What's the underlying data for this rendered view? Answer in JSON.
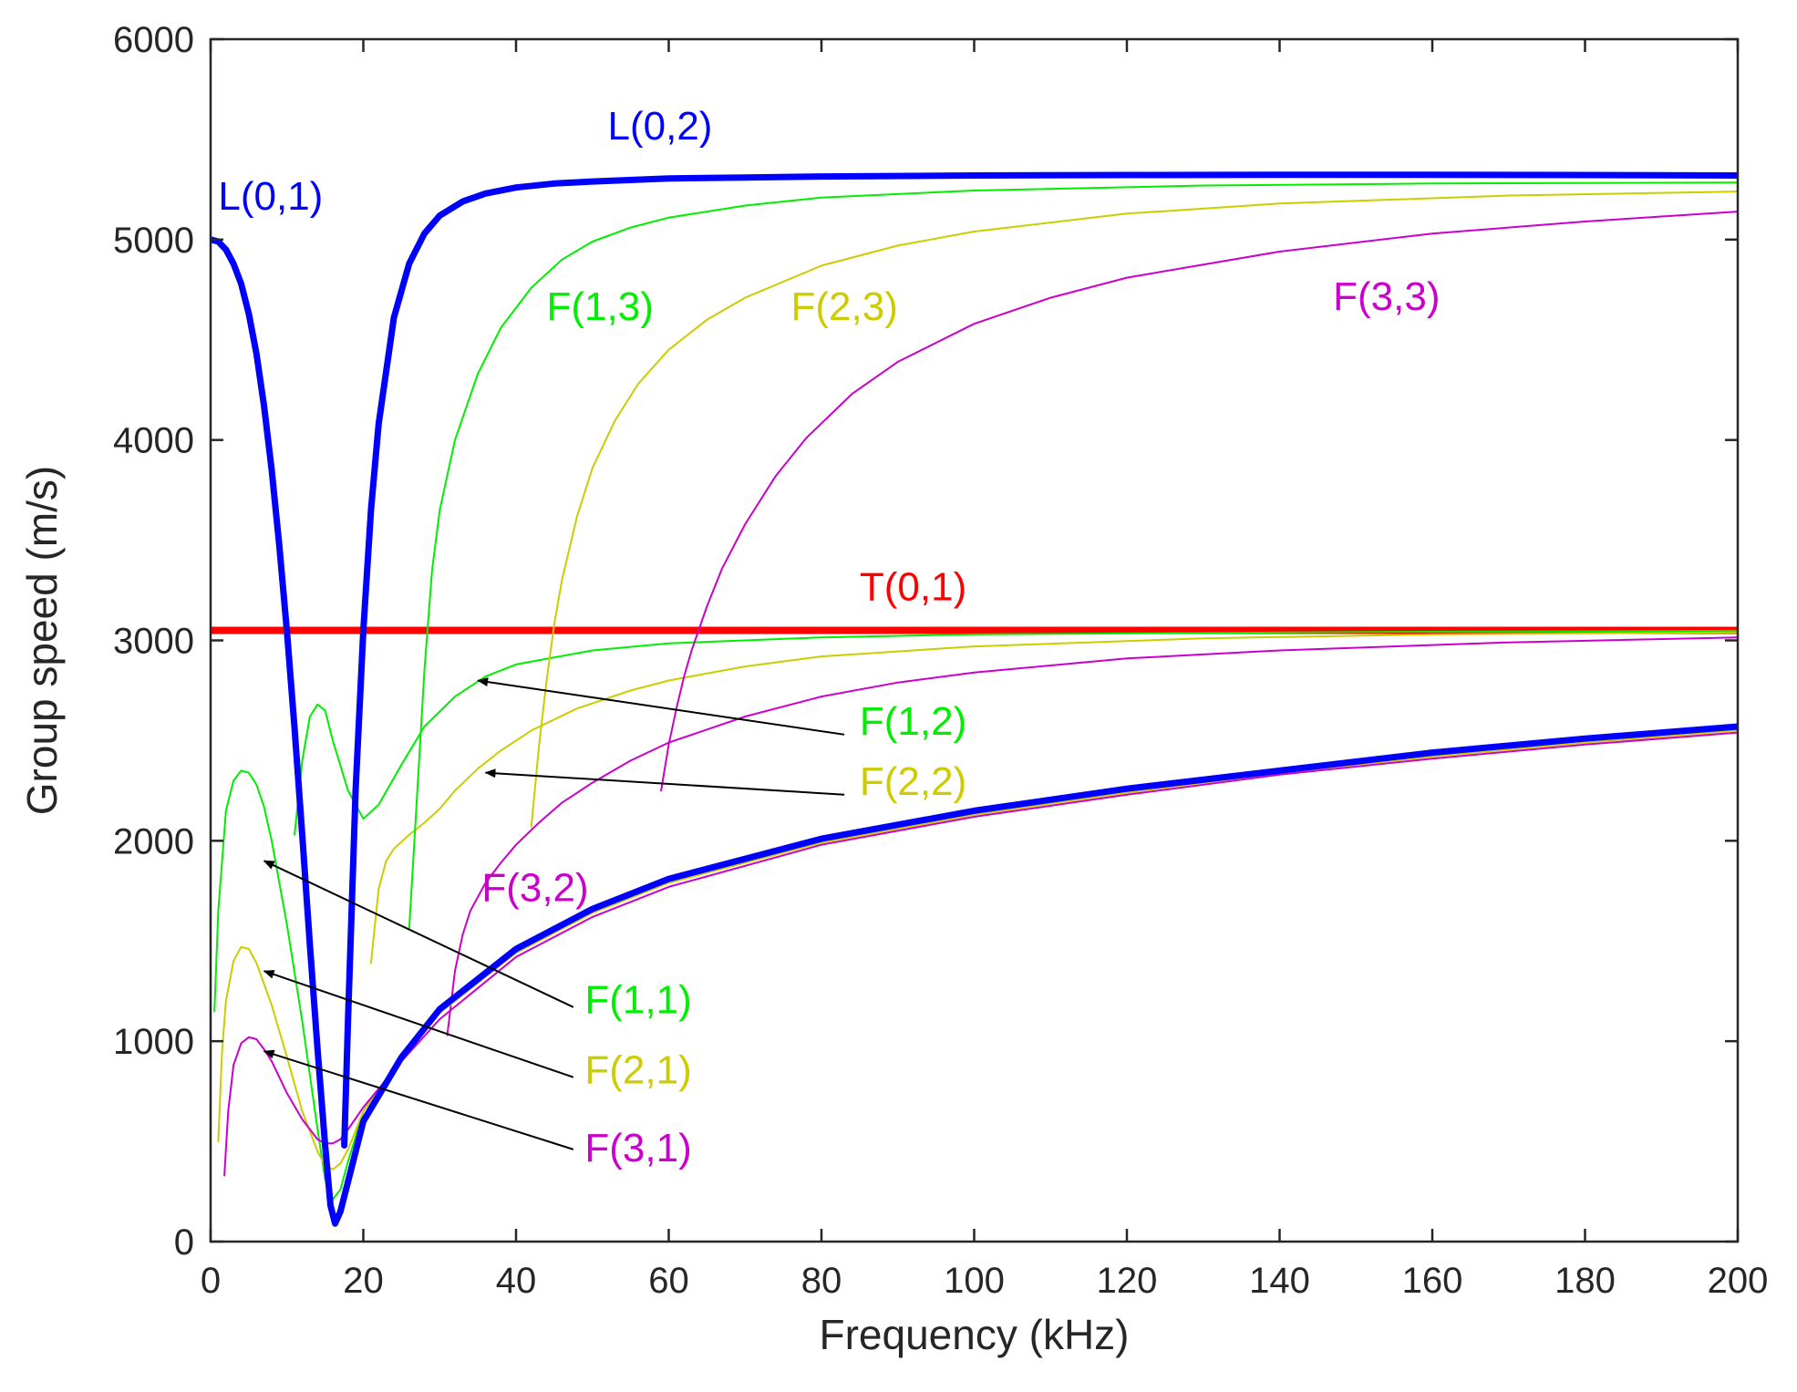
{
  "chart_data": {
    "type": "line",
    "title": "",
    "xlabel": "Frequency (kHz)",
    "ylabel": "Group speed (m/s)",
    "xlim": [
      0,
      200
    ],
    "ylim": [
      0,
      6000
    ],
    "xticks": [
      0,
      20,
      40,
      60,
      80,
      100,
      120,
      140,
      160,
      180,
      200
    ],
    "yticks": [
      0,
      1000,
      2000,
      3000,
      4000,
      5000,
      6000
    ],
    "grid": false,
    "series": [
      {
        "name": "T(0,1)",
        "color": "#ff0000",
        "width": 8,
        "x": [
          0,
          200
        ],
        "y": [
          3050,
          3050
        ]
      },
      {
        "name": "F(1,2)",
        "color": "#00ee00",
        "width": 2,
        "x": [
          11,
          12,
          13,
          14,
          15,
          16,
          18,
          20,
          22,
          25,
          28,
          32,
          36,
          40,
          50,
          60,
          80,
          100,
          150,
          200
        ],
        "y": [
          2030,
          2400,
          2620,
          2680,
          2650,
          2500,
          2250,
          2110,
          2180,
          2380,
          2570,
          2720,
          2820,
          2880,
          2950,
          2985,
          3015,
          3030,
          3042,
          3048
        ]
      },
      {
        "name": "F(2,2)",
        "color": "#cccc00",
        "width": 2,
        "x": [
          21,
          22,
          23,
          24,
          26,
          28,
          30,
          32,
          35,
          38,
          42,
          48,
          55,
          60,
          70,
          80,
          100,
          130,
          160,
          200
        ],
        "y": [
          1390,
          1760,
          1900,
          1960,
          2030,
          2090,
          2160,
          2250,
          2360,
          2450,
          2550,
          2660,
          2750,
          2800,
          2870,
          2920,
          2970,
          3010,
          3030,
          3040
        ]
      },
      {
        "name": "F(3,2)",
        "color": "#cc00cc",
        "width": 2,
        "x": [
          31,
          32,
          33,
          34,
          36,
          38,
          40,
          43,
          46,
          50,
          55,
          60,
          70,
          80,
          90,
          100,
          120,
          140,
          170,
          200
        ],
        "y": [
          1030,
          1350,
          1530,
          1650,
          1790,
          1890,
          1980,
          2090,
          2190,
          2290,
          2400,
          2490,
          2620,
          2720,
          2790,
          2840,
          2910,
          2950,
          2990,
          3015
        ]
      },
      {
        "name": "F(1,3)",
        "color": "#00ee00",
        "width": 2,
        "x": [
          26,
          27,
          28,
          29,
          30,
          32,
          35,
          38,
          42,
          46,
          50,
          55,
          60,
          70,
          80,
          100,
          130,
          160,
          200
        ],
        "y": [
          1560,
          2200,
          2850,
          3350,
          3650,
          4000,
          4330,
          4560,
          4760,
          4900,
          4990,
          5060,
          5110,
          5170,
          5210,
          5245,
          5270,
          5280,
          5285
        ]
      },
      {
        "name": "F(2,3)",
        "color": "#cccc00",
        "width": 2,
        "x": [
          42,
          43,
          44,
          45,
          46,
          48,
          50,
          53,
          56,
          60,
          65,
          70,
          80,
          90,
          100,
          120,
          140,
          170,
          200
        ],
        "y": [
          2070,
          2470,
          2800,
          3080,
          3300,
          3620,
          3860,
          4100,
          4280,
          4450,
          4600,
          4710,
          4870,
          4970,
          5040,
          5130,
          5180,
          5220,
          5240
        ]
      },
      {
        "name": "F(3,3)",
        "color": "#cc00cc",
        "width": 2,
        "x": [
          59,
          60,
          61,
          62,
          63,
          65,
          67,
          70,
          74,
          78,
          84,
          90,
          100,
          110,
          120,
          140,
          160,
          180,
          200
        ],
        "y": [
          2250,
          2480,
          2660,
          2820,
          2950,
          3170,
          3360,
          3580,
          3820,
          4010,
          4230,
          4390,
          4580,
          4710,
          4810,
          4940,
          5030,
          5090,
          5140
        ]
      },
      {
        "name": "F(1,1)",
        "color": "#00ee00",
        "width": 2,
        "x": [
          0.5,
          1,
          2,
          3,
          4,
          5,
          6,
          7,
          8,
          10,
          12,
          14,
          15,
          16,
          17,
          18,
          20,
          25,
          30,
          40,
          50,
          60,
          80,
          100,
          120,
          140,
          160,
          180,
          200
        ],
        "y": [
          1150,
          1650,
          2150,
          2300,
          2350,
          2340,
          2280,
          2170,
          2000,
          1580,
          1100,
          560,
          310,
          210,
          260,
          400,
          650,
          920,
          1150,
          1450,
          1650,
          1800,
          2000,
          2140,
          2250,
          2350,
          2440,
          2500,
          2560
        ]
      },
      {
        "name": "F(2,1)",
        "color": "#cccc00",
        "width": 2,
        "x": [
          1,
          1.5,
          2,
          3,
          4,
          5,
          6,
          8,
          10,
          12,
          14,
          15,
          16,
          17,
          18,
          20,
          25,
          30,
          40,
          50,
          60,
          80,
          100,
          120,
          140,
          160,
          180,
          200
        ],
        "y": [
          500,
          950,
          1200,
          1400,
          1470,
          1460,
          1390,
          1180,
          920,
          650,
          450,
          380,
          360,
          390,
          460,
          650,
          910,
          1140,
          1440,
          1640,
          1790,
          1990,
          2130,
          2240,
          2340,
          2420,
          2490,
          2550
        ]
      },
      {
        "name": "F(3,1)",
        "color": "#cc00cc",
        "width": 2,
        "x": [
          1.8,
          2.3,
          3,
          4,
          5,
          6,
          7,
          8,
          10,
          12,
          14,
          15,
          16,
          17,
          18,
          20,
          25,
          30,
          40,
          50,
          60,
          80,
          100,
          120,
          140,
          160,
          180,
          200
        ],
        "y": [
          330,
          650,
          880,
          990,
          1020,
          1010,
          960,
          900,
          740,
          610,
          510,
          490,
          490,
          510,
          560,
          670,
          900,
          1110,
          1420,
          1620,
          1770,
          1980,
          2120,
          2230,
          2330,
          2410,
          2480,
          2540
        ]
      },
      {
        "name": "L(0,1)",
        "color": "#0000ff",
        "width": 7,
        "x": [
          0,
          1,
          2,
          3,
          4,
          5,
          6,
          7,
          8,
          9,
          10,
          11,
          12,
          13,
          14,
          15,
          15.7,
          16.3,
          17,
          18,
          20,
          25,
          30,
          40,
          50,
          60,
          80,
          100,
          120,
          140,
          160,
          180,
          200
        ],
        "y": [
          5000,
          4990,
          4950,
          4880,
          4780,
          4630,
          4430,
          4170,
          3850,
          3470,
          3040,
          2560,
          2030,
          1480,
          960,
          480,
          180,
          90,
          150,
          300,
          600,
          920,
          1160,
          1460,
          1660,
          1810,
          2010,
          2150,
          2260,
          2350,
          2440,
          2510,
          2570
        ]
      },
      {
        "name": "L(0,2)",
        "color": "#0000ff",
        "width": 7,
        "x": [
          17.5,
          18,
          19,
          20,
          21,
          22,
          24,
          26,
          28,
          30,
          33,
          36,
          40,
          45,
          50,
          60,
          70,
          80,
          100,
          120,
          140,
          160,
          180,
          200
        ],
        "y": [
          480,
          1120,
          2260,
          3050,
          3650,
          4080,
          4610,
          4880,
          5030,
          5120,
          5190,
          5230,
          5260,
          5280,
          5290,
          5305,
          5310,
          5315,
          5320,
          5322,
          5323,
          5323,
          5322,
          5320
        ]
      }
    ],
    "annotations": [
      {
        "text": "L(0,2)",
        "color": "#0000ff",
        "x": 52,
        "y": 5500,
        "anchor": "start",
        "arrow": null
      },
      {
        "text": "L(0,1)",
        "color": "#0000ff",
        "x": 1,
        "y": 5150,
        "anchor": "start",
        "arrow": null
      },
      {
        "text": "F(1,3)",
        "color": "#00ee00",
        "x": 44,
        "y": 4600,
        "anchor": "start",
        "arrow": null
      },
      {
        "text": "F(2,3)",
        "color": "#cccc00",
        "x": 76,
        "y": 4600,
        "anchor": "start",
        "arrow": null
      },
      {
        "text": "F(3,3)",
        "color": "#cc00cc",
        "x": 147,
        "y": 4650,
        "anchor": "start",
        "arrow": null
      },
      {
        "text": "T(0,1)",
        "color": "#ff0000",
        "x": 85,
        "y": 3200,
        "anchor": "start",
        "arrow": null
      },
      {
        "text": "F(1,2)",
        "color": "#00ee00",
        "x": 85,
        "y": 2530,
        "anchor": "start",
        "arrow": {
          "from": [
            83,
            2530
          ],
          "to": [
            35,
            2800
          ]
        }
      },
      {
        "text": "F(2,2)",
        "color": "#cccc00",
        "x": 85,
        "y": 2230,
        "anchor": "start",
        "arrow": {
          "from": [
            83,
            2230
          ],
          "to": [
            36,
            2340
          ]
        }
      },
      {
        "text": "F(3,2)",
        "color": "#cc00cc",
        "x": 35.5,
        "y": 1700,
        "anchor": "start",
        "arrow": null
      },
      {
        "text": "F(1,1)",
        "color": "#00ee00",
        "x": 49,
        "y": 1140,
        "anchor": "start",
        "arrow": {
          "from": [
            47.5,
            1170
          ],
          "to": [
            7,
            1900
          ]
        }
      },
      {
        "text": "F(2,1)",
        "color": "#cccc00",
        "x": 49,
        "y": 790,
        "anchor": "start",
        "arrow": {
          "from": [
            47.5,
            820
          ],
          "to": [
            7,
            1350
          ]
        }
      },
      {
        "text": "F(3,1)",
        "color": "#cc00cc",
        "x": 49,
        "y": 400,
        "anchor": "start",
        "arrow": {
          "from": [
            47.5,
            460
          ],
          "to": [
            7,
            950
          ]
        }
      }
    ]
  }
}
